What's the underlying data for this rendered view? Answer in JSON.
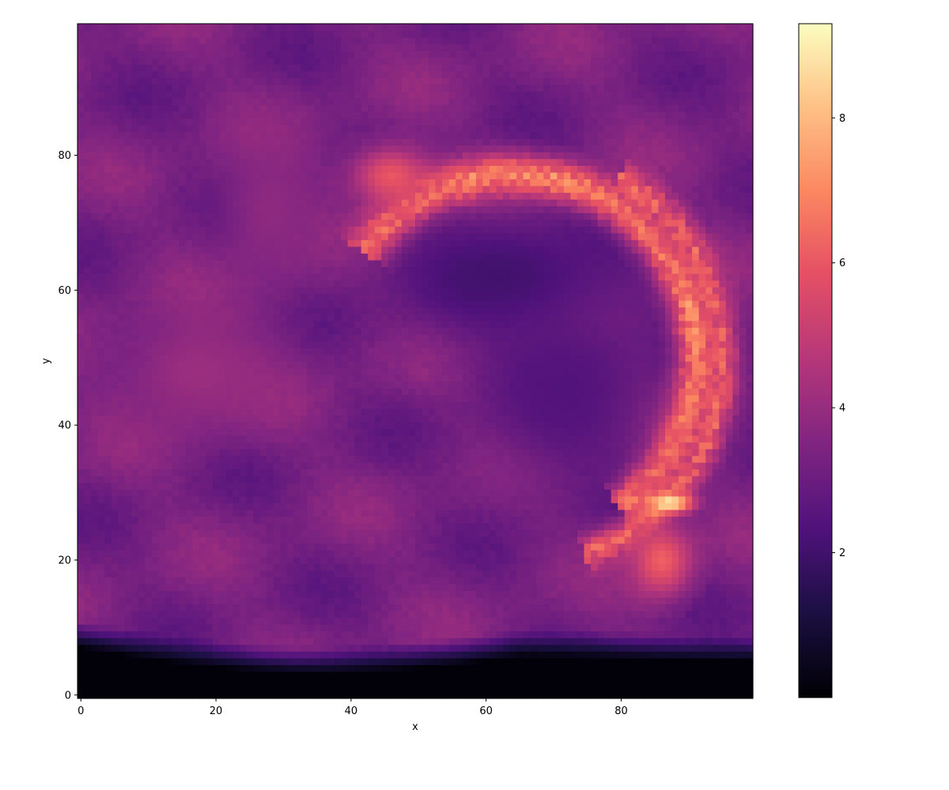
{
  "chart_data": {
    "type": "heatmap",
    "title": "",
    "xlabel": "x",
    "ylabel": "y",
    "xlim": [
      -0.5,
      99.5
    ],
    "ylim": [
      -0.5,
      99.5
    ],
    "grid": false,
    "x_ticks": [
      {
        "value": 0,
        "label": "0"
      },
      {
        "value": 20,
        "label": "20"
      },
      {
        "value": 40,
        "label": "40"
      },
      {
        "value": 60,
        "label": "60"
      },
      {
        "value": 80,
        "label": "80"
      }
    ],
    "y_ticks": [
      {
        "value": 0,
        "label": "0"
      },
      {
        "value": 20,
        "label": "20"
      },
      {
        "value": 40,
        "label": "40"
      },
      {
        "value": 60,
        "label": "60"
      },
      {
        "value": 80,
        "label": "80"
      }
    ],
    "grid_size": [
      100,
      100
    ],
    "colormap": "magma",
    "colorbar": {
      "min": 0.0,
      "max": 9.3,
      "ticks": [
        {
          "value": 2,
          "label": "2"
        },
        {
          "value": 4,
          "label": "4"
        },
        {
          "value": 6,
          "label": "6"
        },
        {
          "value": 8,
          "label": "8"
        }
      ]
    },
    "features": [
      {
        "type": "background",
        "value": 3.3
      },
      {
        "type": "floor",
        "y_top_left": 11,
        "y_top_right": 9,
        "value": 0.1
      },
      {
        "type": "arc",
        "cx": 64,
        "cy": 50,
        "rx": 27,
        "ry": 27,
        "width": 4.5,
        "a_start_deg": 145,
        "a_end_deg": -55,
        "value": 7.0
      },
      {
        "type": "arc",
        "cx": 64,
        "cy": 50,
        "rx": 31,
        "ry": 31,
        "width": 3.5,
        "a_start_deg": 60,
        "a_end_deg": -70,
        "value": 6.0
      },
      {
        "type": "blob",
        "cx": 46,
        "cy": 77,
        "rx": 8,
        "ry": 6,
        "value": 6.0
      },
      {
        "type": "blob",
        "cx": 87,
        "cy": 28.5,
        "rx": 4.5,
        "ry": 1.8,
        "value": 9.0
      },
      {
        "type": "blob",
        "cx": 86,
        "cy": 20,
        "rx": 6,
        "ry": 7,
        "value": 6.2
      },
      {
        "type": "blob",
        "cx": 63,
        "cy": 62,
        "rx": 22,
        "ry": 12,
        "value": 2.0
      },
      {
        "type": "blob",
        "cx": 72,
        "cy": 45,
        "rx": 16,
        "ry": 18,
        "value": 2.4
      },
      {
        "type": "blob",
        "cx": 17,
        "cy": 48,
        "rx": 16,
        "ry": 12,
        "value": 4.1
      },
      {
        "type": "blob",
        "cx": 28,
        "cy": 72,
        "rx": 10,
        "ry": 16,
        "value": 3.8
      }
    ],
    "colormap_stops": [
      {
        "t": 0.0,
        "color": "#000004"
      },
      {
        "t": 0.13,
        "color": "#1c1044"
      },
      {
        "t": 0.25,
        "color": "#4f127b"
      },
      {
        "t": 0.38,
        "color": "#812581"
      },
      {
        "t": 0.5,
        "color": "#b5367a"
      },
      {
        "t": 0.63,
        "color": "#e55064"
      },
      {
        "t": 0.75,
        "color": "#fb8761"
      },
      {
        "t": 0.88,
        "color": "#fec287"
      },
      {
        "t": 1.0,
        "color": "#fcfdbf"
      }
    ]
  }
}
